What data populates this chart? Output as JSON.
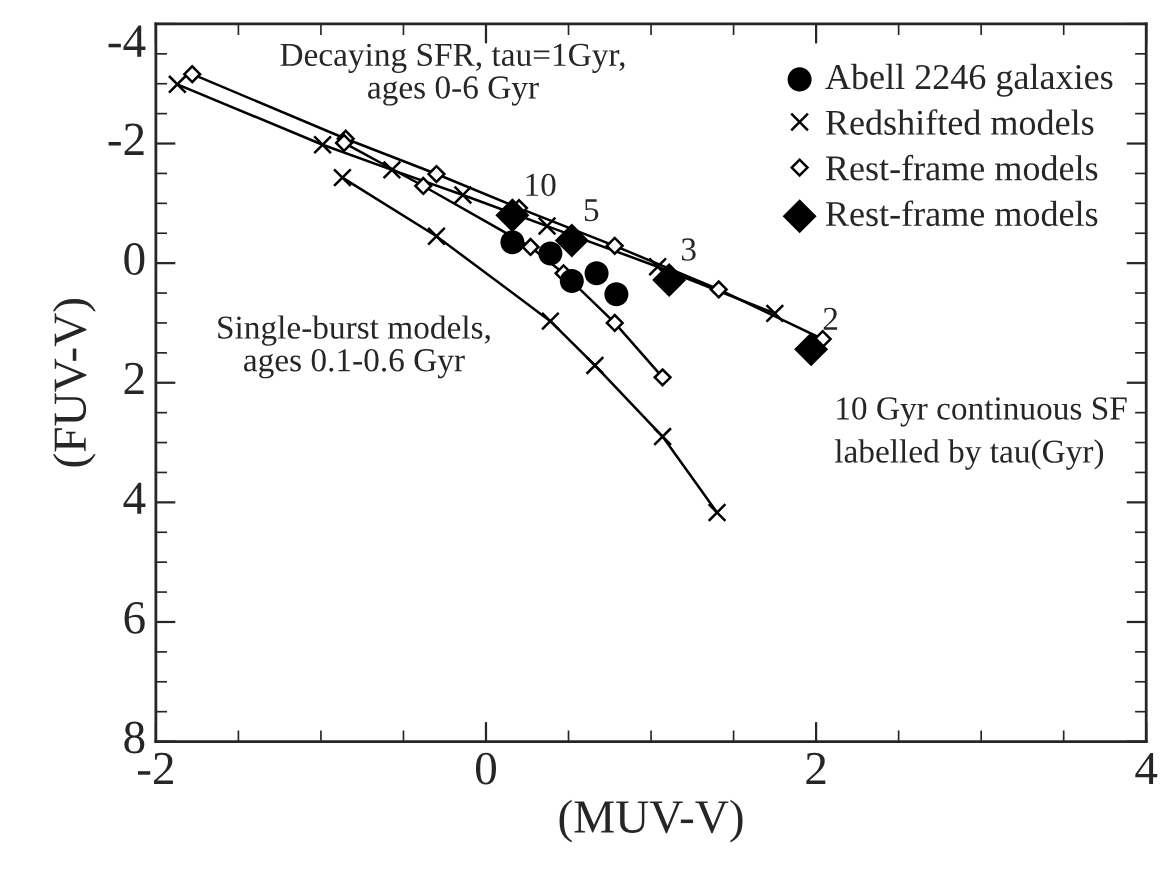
{
  "chart_data": {
    "type": "line",
    "xlabel": "(MUV-V)",
    "ylabel": "(FUV-V)",
    "xlim": [
      -2,
      4
    ],
    "ylim": [
      8,
      -4
    ],
    "xticks": [
      -2,
      0,
      2,
      4
    ],
    "yticks": [
      -4,
      -2,
      0,
      2,
      4,
      6,
      8
    ],
    "grid": false,
    "legend": "top right",
    "series": [
      {
        "type": "scatter",
        "name": "Abell 2246 galaxies",
        "color": "#000000",
        "marker": "circle",
        "x": [
          0.16,
          0.39,
          0.52,
          0.67,
          0.79
        ],
        "values": [
          -0.35,
          -0.16,
          0.3,
          0.17,
          0.52
        ]
      },
      {
        "name": "Redshifted models",
        "color": "#000000",
        "marker": "cross",
        "x": [
          -1.87,
          -0.99,
          -0.57,
          -0.14,
          0.37,
          1.04,
          1.75
        ],
        "values": [
          -2.99,
          -1.98,
          -1.56,
          -1.14,
          -0.62,
          0.06,
          0.84
        ]
      },
      {
        "name": "Rest-frame models",
        "color": "#000000",
        "marker": "diamond",
        "x": [
          -1.78,
          -0.85,
          -0.3,
          0.2,
          0.78,
          1.41,
          2.04
        ],
        "values": [
          -3.16,
          -2.08,
          -1.49,
          -0.92,
          -0.29,
          0.44,
          1.27
        ]
      },
      {
        "color": "#000000",
        "marker": "diamond",
        "x": [
          -0.86,
          -0.38,
          0.27,
          0.47,
          0.78,
          1.07
        ],
        "values": [
          -2.01,
          -1.29,
          -0.27,
          0.17,
          1.0,
          1.91
        ]
      },
      {
        "color": "#000000",
        "marker": "cross",
        "x": [
          -0.87,
          -0.3,
          0.39,
          0.66,
          1.07,
          1.4
        ],
        "values": [
          -1.43,
          -0.45,
          0.97,
          1.71,
          2.9,
          4.17
        ]
      },
      {
        "type": "scatter",
        "name": "Rest-frame models",
        "color": "#000000",
        "marker": "diamond",
        "x": [
          0.16,
          0.52,
          1.11,
          1.97
        ],
        "values": [
          -0.8,
          -0.38,
          0.28,
          1.44
        ]
      }
    ],
    "annotations": [
      "Decaying SFR, tau=1Gyr,\nages 0-6 Gyr",
      "Single-burst models,\nages 0.1-0.6 Gyr",
      "10 Gyr continuous SF",
      "labelled by tau(Gyr)",
      {
        "text": "10",
        "x": 0.16,
        "y": -0.8
      },
      {
        "text": "5",
        "x": 0.52,
        "y": -0.38
      },
      {
        "text": "3",
        "x": 1.11,
        "y": 0.28
      },
      {
        "text": "2",
        "x": 1.97,
        "y": 1.44
      }
    ]
  }
}
